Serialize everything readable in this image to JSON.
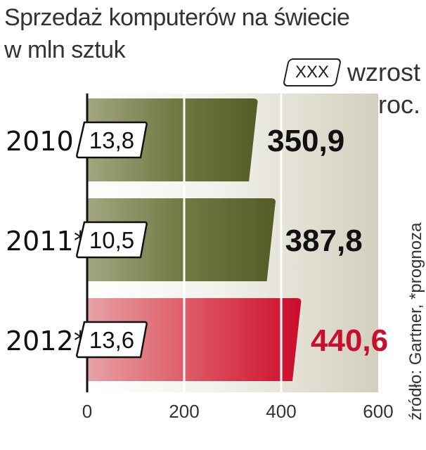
{
  "title": [
    "Sprzedaż komputerów na świecie",
    "w mln sztuk"
  ],
  "legend": {
    "badge": "XXX",
    "label_line1": "wzrost",
    "label_line2": "w proc."
  },
  "source": "źródło: Gartner, *prognoza",
  "colors": {
    "bar_default": "#5c652f",
    "bar_default_light": "#9fa37a",
    "bar_highlight": "#d0102c",
    "bar_highlight_light": "#e8a0a4",
    "value_default": "#111111",
    "value_highlight": "#c8102e",
    "plot_background": "#d6d3c3"
  },
  "chart_data": {
    "type": "bar",
    "orientation": "horizontal",
    "categories": [
      "2010",
      "2011*",
      "2012*"
    ],
    "values": [
      350.9,
      387.8,
      440.6
    ],
    "value_labels": [
      "350,9",
      "387,8",
      "440,6"
    ],
    "growth_labels": [
      "13,8",
      "10,5",
      "13,6"
    ],
    "highlight": [
      false,
      false,
      true
    ],
    "xlim": [
      0,
      600
    ],
    "xticks": [
      0,
      200,
      400,
      600
    ],
    "xtick_labels": [
      "0",
      "200",
      "400",
      "600"
    ],
    "grid": true
  }
}
